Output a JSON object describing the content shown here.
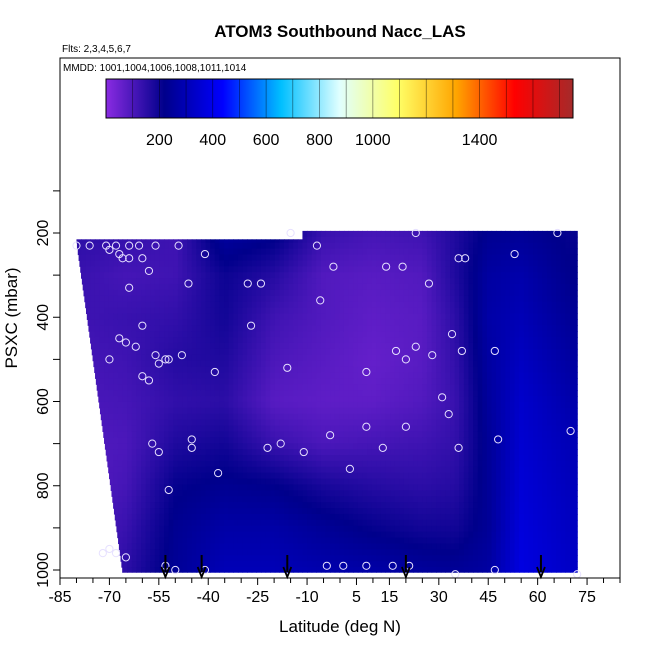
{
  "chart_data": {
    "type": "heatmap",
    "title": "ATOM3 Southbound Nacc_LAS",
    "subtitle_flights": "Flts: 2,3,4,5,6,7",
    "subtitle_dates": "MMDD: 1001,1004,1006,1008,1011,1014",
    "xlabel": "Latitude (deg N)",
    "ylabel": "PSXC (mbar)",
    "xlim": [
      -85,
      85
    ],
    "ylim": [
      1015,
      0
    ],
    "x_ticks": [
      -85,
      -70,
      -55,
      -40,
      -25,
      -10,
      5,
      15,
      30,
      45,
      60,
      75
    ],
    "y_ticks": [
      200,
      400,
      600,
      800,
      1000
    ],
    "colorbar": {
      "min": 0,
      "max": 1750,
      "ticks": [
        200,
        400,
        600,
        800,
        1000,
        1400
      ],
      "colors": [
        "#8a2be2",
        "#00008b",
        "#0000ff",
        "#00bfff",
        "#e0ffff",
        "#ffff66",
        "#ffa500",
        "#ff0000",
        "#a52a2a"
      ]
    },
    "grid": false,
    "field_data_extent": {
      "lat": [
        -80,
        72
      ],
      "pressure": [
        195,
        1005
      ]
    },
    "lat_nodes": [
      -80,
      -65,
      -50,
      -35,
      -20,
      -5,
      10,
      25,
      35,
      45,
      55,
      70
    ],
    "pressure_levels": [
      200,
      300,
      400,
      500,
      600,
      700,
      800,
      900,
      1000
    ],
    "values": [
      [
        150,
        140,
        120,
        260,
        230,
        130,
        110,
        120,
        170,
        230,
        240,
        210
      ],
      [
        130,
        110,
        120,
        200,
        160,
        90,
        80,
        90,
        170,
        260,
        280,
        220
      ],
      [
        120,
        130,
        140,
        190,
        120,
        90,
        70,
        80,
        150,
        270,
        300,
        240
      ],
      [
        110,
        120,
        160,
        170,
        100,
        80,
        60,
        80,
        140,
        260,
        320,
        260
      ],
      [
        100,
        110,
        140,
        150,
        80,
        70,
        70,
        90,
        130,
        250,
        340,
        280
      ],
      [
        90,
        100,
        170,
        190,
        130,
        100,
        110,
        120,
        140,
        240,
        350,
        300
      ],
      [
        80,
        110,
        210,
        230,
        220,
        180,
        160,
        150,
        160,
        240,
        360,
        310
      ],
      [
        90,
        130,
        230,
        270,
        270,
        240,
        210,
        190,
        190,
        240,
        370,
        320
      ],
      [
        100,
        150,
        240,
        300,
        300,
        280,
        270,
        250,
        240,
        260,
        380,
        330
      ]
    ],
    "sample_points": [
      [
        -80,
        230
      ],
      [
        -76,
        230
      ],
      [
        -71,
        230
      ],
      [
        -70,
        240
      ],
      [
        -68,
        230
      ],
      [
        -67,
        250
      ],
      [
        -66,
        260
      ],
      [
        -64,
        230
      ],
      [
        -64,
        260
      ],
      [
        -61,
        230
      ],
      [
        -60,
        260
      ],
      [
        -58,
        290
      ],
      [
        -56,
        230
      ],
      [
        -49,
        230
      ],
      [
        -46,
        320
      ],
      [
        -41,
        250
      ],
      [
        -64,
        330
      ],
      [
        -60,
        420
      ],
      [
        -67,
        450
      ],
      [
        -65,
        460
      ],
      [
        -62,
        470
      ],
      [
        -70,
        500
      ],
      [
        -56,
        490
      ],
      [
        -53,
        500
      ],
      [
        -52,
        500
      ],
      [
        -48,
        490
      ],
      [
        -60,
        540
      ],
      [
        -58,
        550
      ],
      [
        -55,
        510
      ],
      [
        -38,
        530
      ],
      [
        -28,
        320
      ],
      [
        -24,
        320
      ],
      [
        -27,
        420
      ],
      [
        -16,
        520
      ],
      [
        -57,
        700
      ],
      [
        -55,
        720
      ],
      [
        -45,
        690
      ],
      [
        -45,
        710
      ],
      [
        -37,
        770
      ],
      [
        -52,
        810
      ],
      [
        -22,
        710
      ],
      [
        -18,
        700
      ],
      [
        -11,
        720
      ],
      [
        -3,
        680
      ],
      [
        3,
        760
      ],
      [
        -15,
        200
      ],
      [
        -7,
        230
      ],
      [
        -6,
        360
      ],
      [
        -2,
        280
      ],
      [
        8,
        530
      ],
      [
        8,
        660
      ],
      [
        14,
        280
      ],
      [
        17,
        480
      ],
      [
        19,
        280
      ],
      [
        20,
        500
      ],
      [
        20,
        660
      ],
      [
        23,
        470
      ],
      [
        27,
        320
      ],
      [
        28,
        490
      ],
      [
        23,
        200
      ],
      [
        34,
        440
      ],
      [
        36,
        260
      ],
      [
        38,
        260
      ],
      [
        47,
        480
      ],
      [
        48,
        690
      ],
      [
        53,
        250
      ],
      [
        31,
        590
      ],
      [
        33,
        630
      ],
      [
        36,
        710
      ],
      [
        37,
        480
      ],
      [
        13,
        710
      ],
      [
        66,
        200
      ],
      [
        70,
        670
      ],
      [
        -72,
        960
      ],
      [
        -70,
        950
      ],
      [
        -68,
        960
      ],
      [
        -65,
        970
      ],
      [
        -53,
        990
      ],
      [
        -50,
        1000
      ],
      [
        -41,
        1000
      ],
      [
        -4,
        990
      ],
      [
        1,
        990
      ],
      [
        8,
        990
      ],
      [
        16,
        990
      ],
      [
        21,
        990
      ],
      [
        35,
        1010
      ],
      [
        47,
        1000
      ],
      [
        72,
        1010
      ]
    ],
    "arrow_latitudes": [
      -53,
      -42,
      -16,
      20,
      61
    ]
  }
}
